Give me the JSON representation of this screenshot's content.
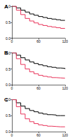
{
  "chart_data": [
    {
      "type": "line",
      "title": "A",
      "x": [
        0,
        10,
        20,
        30,
        40,
        50,
        60,
        70,
        80,
        90,
        100,
        110,
        120
      ],
      "series": [
        {
          "color": "#000000",
          "values": [
            1,
            0.95,
            0.88,
            0.82,
            0.76,
            0.72,
            0.68,
            0.65,
            0.62,
            0.6,
            0.58,
            0.56,
            0.55
          ]
        },
        {
          "color": "#e8345a",
          "values": [
            1,
            0.88,
            0.74,
            0.62,
            0.54,
            0.48,
            0.43,
            0.4,
            0.37,
            0.35,
            0.33,
            0.31,
            0.3
          ]
        }
      ],
      "xlim": [
        0,
        120
      ],
      "xticks": [
        0,
        60,
        120
      ],
      "ylim": [
        0,
        1
      ],
      "yticks": [
        {
          "value": 0,
          "label": "0.0"
        },
        {
          "value": 0.5,
          "label": "0.5"
        },
        {
          "value": 1,
          "label": "1.0"
        }
      ],
      "grid": false,
      "marker": "none",
      "line_style": "solid"
    },
    {
      "type": "line",
      "title": "B",
      "x": [
        0,
        10,
        20,
        30,
        40,
        50,
        60,
        70,
        80,
        90,
        100,
        110,
        120
      ],
      "series": [
        {
          "color": "#000000",
          "values": [
            1,
            0.93,
            0.85,
            0.78,
            0.72,
            0.67,
            0.63,
            0.6,
            0.57,
            0.55,
            0.53,
            0.52,
            0.5
          ]
        },
        {
          "color": "#e8345a",
          "values": [
            1,
            0.82,
            0.64,
            0.5,
            0.41,
            0.35,
            0.3,
            0.27,
            0.25,
            0.23,
            0.22,
            0.21,
            0.2
          ]
        }
      ],
      "xlim": [
        0,
        120
      ],
      "xticks": [
        0,
        60,
        120
      ],
      "ylim": [
        0,
        1
      ],
      "yticks": [
        {
          "value": 0,
          "label": "0.0"
        },
        {
          "value": 0.5,
          "label": "0.5"
        },
        {
          "value": 1,
          "label": "1.0"
        }
      ],
      "grid": false,
      "marker": "none",
      "line_style": "solid"
    },
    {
      "type": "line",
      "title": "C",
      "x": [
        0,
        10,
        20,
        30,
        40,
        50,
        60,
        70,
        80,
        90,
        100,
        110,
        120
      ],
      "series": [
        {
          "color": "#000000",
          "values": [
            1,
            0.9,
            0.8,
            0.72,
            0.66,
            0.62,
            0.58,
            0.55,
            0.53,
            0.52,
            0.5,
            0.5,
            0.5
          ]
        },
        {
          "color": "#e8345a",
          "values": [
            1,
            0.78,
            0.55,
            0.4,
            0.31,
            0.25,
            0.21,
            0.19,
            0.17,
            0.16,
            0.15,
            0.15,
            0.15
          ]
        }
      ],
      "xlim": [
        0,
        120
      ],
      "xticks": [
        0,
        60,
        120
      ],
      "ylim": [
        0,
        1
      ],
      "yticks": [
        {
          "value": 0,
          "label": "0.0"
        },
        {
          "value": 0.5,
          "label": "0.5"
        },
        {
          "value": 1,
          "label": "1.0"
        }
      ],
      "grid": false,
      "marker": "none",
      "line_style": "solid"
    }
  ]
}
